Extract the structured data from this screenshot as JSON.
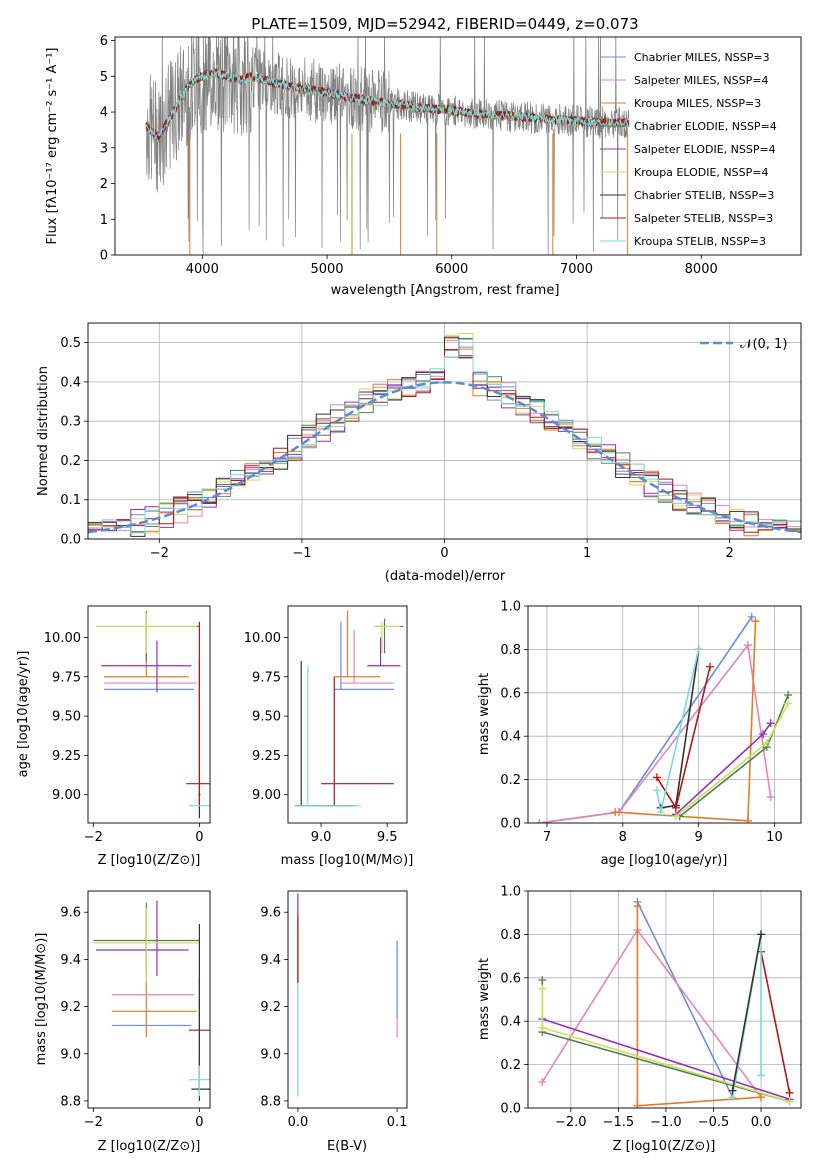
{
  "colors": {
    "chabrier_miles": "#6a8fdc",
    "salpeter_miles": "#e584b8",
    "kroupa_miles": "#e07b2a",
    "chabrier_elodie": "#4f7f4f",
    "salpeter_elodie": "#9530b4",
    "kroupa_elodie": "#c9e05a",
    "chabrier_stelib": "#333333",
    "salpeter_stelib": "#b01818",
    "kroupa_stelib": "#7fd8d8",
    "data": "#808080",
    "normal": "#5b8bd6"
  },
  "chart_data": [
    {
      "id": "spectrum",
      "type": "line",
      "title": "PLATE=1509, MJD=52942, FIBERID=0449, z=0.073",
      "xlabel": "wavelength [Angstrom, rest frame]",
      "ylabel": "Flux [f",
      "ylabel_full": "Flux [fλ10⁻¹⁷ erg cm⁻² s⁻¹ A⁻¹]",
      "xlim": [
        3300,
        8800
      ],
      "ylim": [
        0,
        6.1
      ],
      "xticks": [
        "4000",
        "5000",
        "6000",
        "7000",
        "8000"
      ],
      "yticks": [
        "0",
        "1",
        "2",
        "3",
        "4",
        "5",
        "6"
      ],
      "legend": [
        "Chabrier MILES, NSSP=3",
        "Salpeter MILES, NSSP=4",
        "Kroupa MILES, NSSP=3",
        "Chabrier ELODIE, NSSP=4",
        "Salpeter ELODIE, NSSP=4",
        "Kroupa ELODIE, NSSP=4",
        "Chabrier STELIB, NSSP=3",
        "Salpeter STELIB, NSSP=3",
        "Kroupa STELIB, NSSP=3"
      ],
      "model_continuum": {
        "x": [
          3550,
          3650,
          3800,
          3900,
          4000,
          4100,
          4200,
          4300,
          4400,
          4600,
          4800,
          5000,
          5200,
          5400,
          5600,
          5800,
          6000,
          6200,
          6400,
          6600,
          6800,
          7000,
          7200,
          7400
        ],
        "y": [
          3.6,
          3.3,
          4.2,
          4.8,
          5.0,
          5.1,
          5.0,
          4.9,
          5.0,
          4.8,
          4.65,
          4.55,
          4.4,
          4.3,
          4.2,
          4.1,
          4.05,
          3.95,
          3.9,
          3.85,
          3.8,
          3.75,
          3.72,
          3.7
        ]
      }
    },
    {
      "id": "residuals",
      "type": "histogram",
      "xlabel": "(data-model)/error",
      "ylabel": "Normed distribution",
      "xlim": [
        -2.5,
        2.5
      ],
      "ylim": [
        0,
        0.55
      ],
      "xticks": [
        "−2",
        "−1",
        "0",
        "1",
        "2"
      ],
      "yticks": [
        "0.0",
        "0.1",
        "0.2",
        "0.3",
        "0.4",
        "0.5"
      ],
      "legend": "𝒩(0, 1)",
      "normal_curve": {
        "mu": 0,
        "sigma": 1
      }
    },
    {
      "id": "age_vs_z",
      "type": "errorbar",
      "xlabel": "Z [log10(Z/Z⊙)]",
      "ylabel": "age  [log10(age/yr)]",
      "xlim": [
        -2.1,
        0.2
      ],
      "ylim": [
        8.82,
        10.2
      ],
      "xticks": [
        "−2",
        "0"
      ],
      "yticks": [
        "9.00",
        "9.25",
        "9.50",
        "9.75",
        "10.00"
      ],
      "points": [
        {
          "s": "chabrier_miles",
          "x": -0.9,
          "y": 9.67,
          "xe": [
            -1.8,
            -0.1
          ],
          "ye": [
            9.67,
            9.67
          ]
        },
        {
          "s": "salpeter_miles",
          "x": -0.8,
          "y": 9.71,
          "xe": [
            -1.8,
            -0.05
          ],
          "ye": [
            9.71,
            9.71
          ]
        },
        {
          "s": "kroupa_miles",
          "x": -1.0,
          "y": 9.75,
          "xe": [
            -1.8,
            -0.2
          ],
          "ye": [
            9.75,
            10.17
          ]
        },
        {
          "s": "salpeter_elodie",
          "x": -0.8,
          "y": 9.82,
          "xe": [
            -1.85,
            -0.15
          ],
          "ye": [
            9.65,
            9.98
          ]
        },
        {
          "s": "chabrier_elodie",
          "x": -1.0,
          "y": 10.07,
          "xe": [
            -1.95,
            0.0
          ],
          "ye": [
            9.85,
            10.15
          ]
        },
        {
          "s": "kroupa_elodie",
          "x": -1.0,
          "y": 10.07,
          "xe": [
            -1.95,
            -0.05
          ],
          "ye": [
            9.9,
            10.15
          ]
        },
        {
          "s": "chabrier_stelib",
          "x": 0.0,
          "y": 9.0,
          "xe": [
            -0.02,
            0.02
          ],
          "ye": [
            8.85,
            9.85
          ]
        },
        {
          "s": "salpeter_stelib",
          "x": 0.0,
          "y": 9.07,
          "xe": [
            -0.25,
            0.25
          ],
          "ye": [
            8.93,
            10.1
          ]
        },
        {
          "s": "kroupa_stelib",
          "x": 0.0,
          "y": 8.93,
          "xe": [
            -0.2,
            0.25
          ],
          "ye": [
            8.93,
            8.93
          ]
        }
      ]
    },
    {
      "id": "age_vs_mass",
      "type": "errorbar",
      "xlabel": "mass [log10(M/M⊙)]",
      "xlim": [
        8.75,
        9.65
      ],
      "ylim": [
        8.82,
        10.2
      ],
      "xticks": [
        "9.0",
        "9.5"
      ],
      "yticks": [
        "9.00",
        "9.25",
        "9.50",
        "9.75",
        "10.00"
      ],
      "points": [
        {
          "s": "chabrier_miles",
          "x": 9.15,
          "y": 9.67,
          "xe": [
            9.1,
            9.55
          ],
          "ye": [
            9.67,
            10.1
          ]
        },
        {
          "s": "salpeter_miles",
          "x": 9.25,
          "y": 9.71,
          "xe": [
            9.15,
            9.55
          ],
          "ye": [
            9.71,
            10.05
          ]
        },
        {
          "s": "kroupa_miles",
          "x": 9.2,
          "y": 9.75,
          "xe": [
            9.1,
            9.45
          ],
          "ye": [
            9.75,
            10.17
          ]
        },
        {
          "s": "salpeter_elodie",
          "x": 9.45,
          "y": 9.82,
          "xe": [
            9.35,
            9.6
          ],
          "ye": [
            9.82,
            10.0
          ]
        },
        {
          "s": "chabrier_elodie",
          "x": 9.48,
          "y": 10.07,
          "xe": [
            9.4,
            9.62
          ],
          "ye": [
            9.9,
            10.12
          ]
        },
        {
          "s": "kroupa_elodie",
          "x": 9.46,
          "y": 10.07,
          "xe": [
            9.4,
            9.6
          ],
          "ye": [
            9.9,
            10.1
          ]
        },
        {
          "s": "chabrier_stelib",
          "x": 8.85,
          "y": 8.93,
          "xe": [
            8.8,
            9.25
          ],
          "ye": [
            8.93,
            9.85
          ]
        },
        {
          "s": "salpeter_stelib",
          "x": 9.1,
          "y": 9.07,
          "xe": [
            9.0,
            9.55
          ],
          "ye": [
            8.93,
            9.75
          ]
        },
        {
          "s": "kroupa_stelib",
          "x": 8.9,
          "y": 8.93,
          "xe": [
            8.8,
            9.3
          ],
          "ye": [
            8.93,
            9.82
          ]
        }
      ]
    },
    {
      "id": "weight_vs_age",
      "type": "line",
      "xlabel": "age  [log10(age/yr)]",
      "ylabel": "mass weight",
      "xlim": [
        6.75,
        10.35
      ],
      "ylim": [
        0,
        1
      ],
      "xticks": [
        "7",
        "8",
        "9",
        "10"
      ],
      "yticks": [
        "0.0",
        "0.2",
        "0.4",
        "0.6",
        "0.8",
        "1.0"
      ],
      "series": [
        {
          "s": "chabrier_miles",
          "x": [
            6.9,
            7.95,
            9.7
          ],
          "y": [
            0.0,
            0.05,
            0.95
          ]
        },
        {
          "s": "salpeter_miles",
          "x": [
            6.9,
            7.95,
            9.65,
            9.95
          ],
          "y": [
            0.0,
            0.05,
            0.82,
            0.12
          ]
        },
        {
          "s": "kroupa_miles",
          "x": [
            7.9,
            9.65,
            9.75
          ],
          "y": [
            0.05,
            0.01,
            0.93
          ]
        },
        {
          "s": "chabrier_elodie",
          "x": [
            8.75,
            9.9,
            10.18
          ],
          "y": [
            0.03,
            0.35,
            0.59
          ]
        },
        {
          "s": "salpeter_elodie",
          "x": [
            8.7,
            9.85,
            9.95
          ],
          "y": [
            0.04,
            0.41,
            0.46
          ]
        },
        {
          "s": "kroupa_elodie",
          "x": [
            8.7,
            9.9,
            10.18
          ],
          "y": [
            0.03,
            0.37,
            0.55
          ]
        },
        {
          "s": "chabrier_stelib",
          "x": [
            8.5,
            8.7,
            9.0
          ],
          "y": [
            0.07,
            0.08,
            0.8
          ]
        },
        {
          "s": "salpeter_stelib",
          "x": [
            8.45,
            8.7,
            9.15
          ],
          "y": [
            0.21,
            0.07,
            0.72
          ]
        },
        {
          "s": "kroupa_stelib",
          "x": [
            8.45,
            8.5,
            9.0
          ],
          "y": [
            0.15,
            0.05,
            0.8
          ]
        }
      ]
    },
    {
      "id": "mass_vs_z",
      "type": "errorbar",
      "xlabel": "Z [log10(Z/Z⊙)]",
      "ylabel": "mass [log10(M/M⊙)]",
      "xlim": [
        -2.1,
        0.2
      ],
      "ylim": [
        8.77,
        9.69
      ],
      "xticks": [
        "−2",
        "0"
      ],
      "yticks": [
        "8.8",
        "9.0",
        "9.2",
        "9.4",
        "9.6"
      ],
      "points": [
        {
          "s": "chabrier_miles",
          "x": -1.0,
          "y": 9.12,
          "xe": [
            -1.65,
            -0.15
          ],
          "ye": [
            9.12,
            9.12
          ]
        },
        {
          "s": "kroupa_miles",
          "x": -1.0,
          "y": 9.18,
          "xe": [
            -1.65,
            -0.05
          ],
          "ye": [
            9.07,
            9.6
          ]
        },
        {
          "s": "salpeter_miles",
          "x": -1.0,
          "y": 9.25,
          "xe": [
            -1.65,
            -0.1
          ],
          "ye": [
            9.25,
            9.25
          ]
        },
        {
          "s": "salpeter_elodie",
          "x": -0.8,
          "y": 9.44,
          "xe": [
            -1.95,
            -0.2
          ],
          "ye": [
            9.33,
            9.65
          ]
        },
        {
          "s": "chabrier_elodie",
          "x": -1.0,
          "y": 9.48,
          "xe": [
            -2.0,
            0.0
          ],
          "ye": [
            9.35,
            9.64
          ]
        },
        {
          "s": "kroupa_elodie",
          "x": -1.0,
          "y": 9.47,
          "xe": [
            -2.0,
            0.0
          ],
          "ye": [
            9.3,
            9.62
          ]
        },
        {
          "s": "salpeter_stelib",
          "x": 0.0,
          "y": 9.1,
          "xe": [
            -0.2,
            0.25
          ],
          "ye": [
            8.85,
            9.32
          ]
        },
        {
          "s": "chabrier_stelib",
          "x": 0.0,
          "y": 8.85,
          "xe": [
            -0.15,
            0.2
          ],
          "ye": [
            8.8,
            9.55
          ]
        },
        {
          "s": "kroupa_stelib",
          "x": 0.0,
          "y": 8.89,
          "xe": [
            -0.2,
            0.2
          ],
          "ye": [
            8.82,
            8.95
          ]
        }
      ]
    },
    {
      "id": "mass_vs_ebv",
      "type": "errorbar",
      "xlabel": "E(B-V)",
      "xlim": [
        -0.01,
        0.11
      ],
      "ylim": [
        8.77,
        9.69
      ],
      "xticks": [
        "0.0",
        "0.1"
      ],
      "yticks": [
        "8.8",
        "9.0",
        "9.2",
        "9.4",
        "9.6"
      ],
      "points": [
        {
          "s": "chabrier_miles",
          "x": 0.0,
          "y": 9.12,
          "xe": [
            0.0,
            0.0
          ],
          "ye": [
            8.82,
            9.6
          ]
        },
        {
          "s": "salpeter_elodie",
          "x": 0.0,
          "y": 9.44,
          "xe": [
            0.0,
            0.0
          ],
          "ye": [
            9.3,
            9.68
          ]
        },
        {
          "s": "salpeter_stelib",
          "x": 0.0,
          "y": 9.1,
          "xe": [
            0.0,
            0.0
          ],
          "ye": [
            9.3,
            9.58
          ]
        },
        {
          "s": "kroupa_stelib",
          "x": 0.0,
          "y": 8.89,
          "xe": [
            0.0,
            0.0
          ],
          "ye": [
            8.82,
            9.3
          ]
        },
        {
          "s": "salpeter_miles",
          "x": 0.1,
          "y": 9.25,
          "xe": [
            0.1,
            0.1
          ],
          "ye": [
            9.07,
            9.45
          ]
        },
        {
          "s": "chabrier_miles",
          "x": 0.1,
          "y": 9.3,
          "xe": [
            0.1,
            0.1
          ],
          "ye": [
            9.15,
            9.48
          ]
        }
      ]
    },
    {
      "id": "weight_vs_z",
      "type": "line",
      "xlabel": "Z [log10(Z/Z⊙)]",
      "ylabel": "mass weight",
      "xlim": [
        -2.45,
        0.42
      ],
      "ylim": [
        0,
        1
      ],
      "xticks": [
        "−2.0",
        "−1.5",
        "−1.0",
        "−0.5",
        "0.0"
      ],
      "yticks": [
        "0.0",
        "0.2",
        "0.4",
        "0.6",
        "0.8",
        "1.0"
      ],
      "series": [
        {
          "s": "chabrier_miles",
          "x": [
            -1.3,
            -0.3,
            0.0
          ],
          "y": [
            0.95,
            0.05,
            0.8
          ]
        },
        {
          "s": "salpeter_miles",
          "x": [
            -2.3,
            -1.3,
            0.0
          ],
          "y": [
            0.12,
            0.82,
            0.05
          ]
        },
        {
          "s": "kroupa_miles",
          "x": [
            -1.3,
            -1.3,
            0.0
          ],
          "y": [
            0.93,
            0.01,
            0.05
          ]
        },
        {
          "s": "chabrier_elodie",
          "x": [
            -2.3,
            -2.3,
            0.3
          ],
          "y": [
            0.59,
            0.35,
            0.03
          ]
        },
        {
          "s": "salpeter_elodie",
          "x": [
            -2.3,
            0.3
          ],
          "y": [
            0.41,
            0.04
          ]
        },
        {
          "s": "kroupa_elodie",
          "x": [
            -2.3,
            -2.3,
            0.3
          ],
          "y": [
            0.55,
            0.37,
            0.03
          ]
        },
        {
          "s": "salpeter_stelib",
          "x": [
            0.0,
            0.3
          ],
          "y": [
            0.72,
            0.07
          ]
        },
        {
          "s": "kroupa_stelib",
          "x": [
            -0.3,
            0.0,
            0.0
          ],
          "y": [
            0.05,
            0.8,
            0.15
          ]
        },
        {
          "s": "chabrier_stelib",
          "x": [
            -0.3,
            0.0
          ],
          "y": [
            0.08,
            0.8
          ]
        }
      ]
    }
  ]
}
